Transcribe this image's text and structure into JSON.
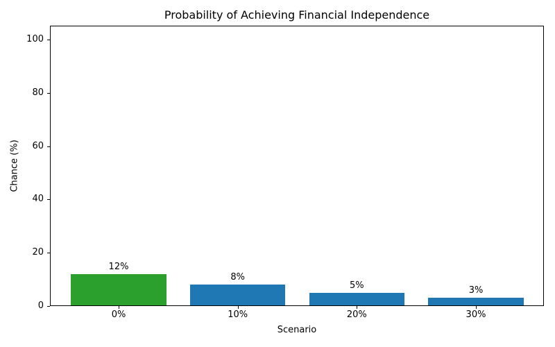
{
  "chart_data": {
    "type": "bar",
    "title": "Probability of Achieving Financial Independence",
    "xlabel": "Scenario",
    "ylabel": "Chance (%)",
    "categories": [
      "0%",
      "10%",
      "20%",
      "30%"
    ],
    "values": [
      12,
      8,
      5,
      3
    ],
    "bar_labels": [
      "12%",
      "8%",
      "5%",
      "3%"
    ],
    "bar_colors": [
      "#2ca02c",
      "#1f77b4",
      "#1f77b4",
      "#1f77b4"
    ],
    "yticks": [
      0,
      20,
      40,
      60,
      80,
      100
    ],
    "ylim": [
      0,
      105
    ],
    "grid": false,
    "legend_position": "none",
    "colors": {
      "highlight_bar": "#2ca02c",
      "default_bar": "#1f77b4",
      "axis": "#000000",
      "background": "#ffffff"
    }
  }
}
